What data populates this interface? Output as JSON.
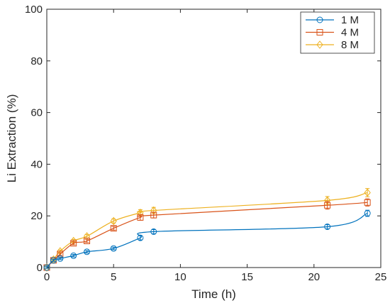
{
  "chart_data": {
    "type": "line",
    "xlabel": "Time (h)",
    "ylabel": "Li Extraction (%)",
    "xlim": [
      0,
      25
    ],
    "ylim": [
      0,
      100
    ],
    "xticks": [
      "0",
      "5",
      "10",
      "15",
      "20",
      "25"
    ],
    "yticks": [
      "0",
      "20",
      "40",
      "60",
      "80",
      "100"
    ],
    "grid": false,
    "legend_position": "top-right",
    "x": [
      0,
      0.5,
      1,
      2,
      3,
      5,
      7,
      8,
      21,
      24
    ],
    "series": [
      {
        "name": "1 M",
        "color": "#0072BD",
        "marker": "circle",
        "values": [
          0,
          2.8,
          3.5,
          4.6,
          6.1,
          7.4,
          11.5,
          13.9,
          15.8,
          21
        ],
        "errors": [
          0.3,
          0.4,
          0.4,
          0.5,
          0.5,
          0.5,
          0.8,
          0.8,
          0.8,
          1.2
        ]
      },
      {
        "name": "4 M",
        "color": "#D95319",
        "marker": "square",
        "values": [
          0,
          2.8,
          5.2,
          9.4,
          10.3,
          15.2,
          19.4,
          20.3,
          24.1,
          25.2
        ],
        "errors": [
          0.3,
          0.4,
          0.5,
          0.6,
          0.6,
          0.7,
          1.1,
          1.1,
          1.5,
          1.4
        ]
      },
      {
        "name": "8 M",
        "color": "#EDB120",
        "marker": "diamond",
        "values": [
          0,
          3.1,
          6.3,
          10.3,
          12.1,
          18,
          21.2,
          22.1,
          26,
          29
        ],
        "errors": [
          0.3,
          0.4,
          0.5,
          0.6,
          0.7,
          0.8,
          1.2,
          1.2,
          1.5,
          1.6
        ]
      }
    ]
  }
}
